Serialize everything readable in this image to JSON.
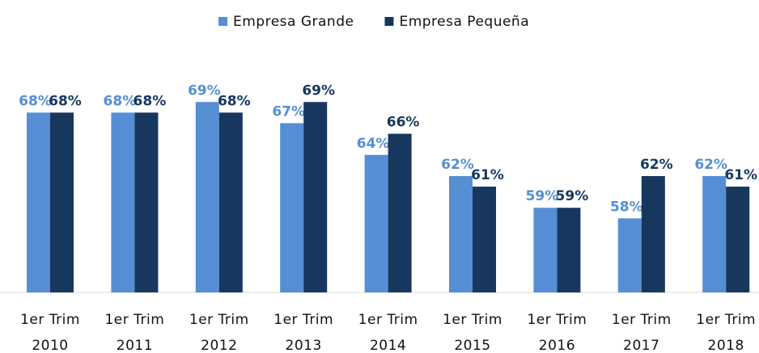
{
  "chart_data": {
    "type": "bar",
    "categories": [
      "1er Trim 2010",
      "1er Trim 2011",
      "1er Trim 2012",
      "1er Trim 2013",
      "1er Trim 2014",
      "1er Trim 2015",
      "1er Trim 2016",
      "1er Trim 2017",
      "1er Trim 2018"
    ],
    "series": [
      {
        "name": "Empresa Grande",
        "color": "#558ed5",
        "values": [
          68,
          68,
          69,
          67,
          64,
          62,
          59,
          58,
          62
        ],
        "value_labels": [
          "68%",
          "68%",
          "69%",
          "67%",
          "64%",
          "62%",
          "59%",
          "58%",
          "62%"
        ]
      },
      {
        "name": "Empresa Pequeña",
        "color": "#17375e",
        "values": [
          68,
          68,
          68,
          69,
          66,
          61,
          59,
          62,
          61
        ],
        "value_labels": [
          "68%",
          "68%",
          "68%",
          "69%",
          "66%",
          "61%",
          "59%",
          "62%",
          "61%"
        ]
      }
    ],
    "ylim": [
      51,
      72
    ],
    "legend": "top"
  }
}
